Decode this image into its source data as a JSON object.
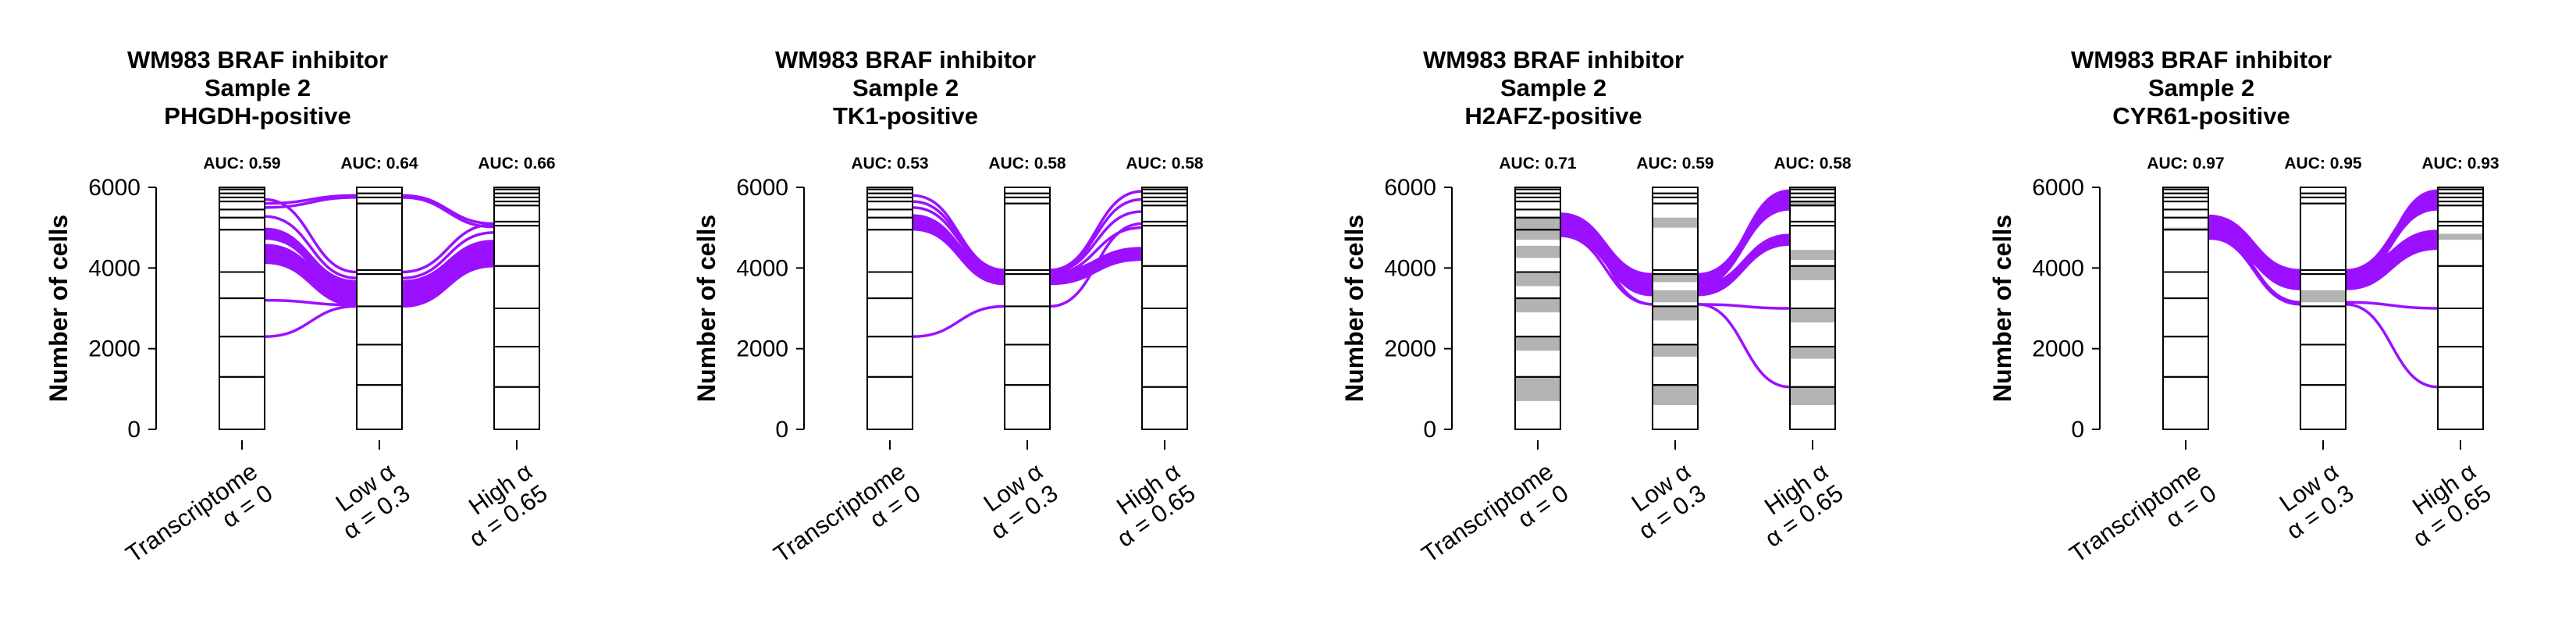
{
  "style": {
    "flow_color": "#9b10ff",
    "highlight_color": "#b3b3b3",
    "axis_color": "#000000"
  },
  "chart_data": [
    {
      "type": "alluvial",
      "title": [
        "WM983 BRAF inhibitor",
        "Sample 2",
        "PHGDH-positive"
      ],
      "ylabel": "Number of cells",
      "ylim": [
        0,
        6000
      ],
      "yticks": [
        0,
        2000,
        4000,
        6000
      ],
      "categories": [
        [
          "Transcriptome",
          "α = 0"
        ],
        [
          "Low α",
          "α = 0.3"
        ],
        [
          "High α",
          "α = 0.65"
        ]
      ],
      "auc": [
        "AUC: 0.59",
        "AUC: 0.64",
        "AUC: 0.66"
      ],
      "axes": [
        {
          "boundaries": [
            0,
            1300,
            2300,
            3250,
            3900,
            4950,
            5250,
            5450,
            5650,
            5750,
            5850,
            5950,
            6000
          ],
          "gray": []
        },
        {
          "boundaries": [
            0,
            1100,
            2100,
            3050,
            3850,
            3950,
            5600,
            5750,
            5850,
            6000
          ],
          "gray": []
        },
        {
          "boundaries": [
            0,
            1050,
            2050,
            3000,
            4050,
            5050,
            5150,
            5550,
            5650,
            5750,
            5850,
            5950,
            6000
          ],
          "gray": []
        }
      ],
      "flows": [
        {
          "y": [
            2300,
            3050,
            4050
          ],
          "band": 0
        },
        {
          "y": [
            3200,
            3080,
            4150
          ],
          "band": 0
        },
        {
          "y": [
            4350,
            3300,
            4300
          ],
          "band": 500
        },
        {
          "y": [
            4850,
            3550,
            4550
          ],
          "band": 300
        },
        {
          "y": [
            5280,
            3750,
            4880
          ],
          "band": 0
        },
        {
          "y": [
            5500,
            5750,
            5020
          ],
          "band": 0
        },
        {
          "y": [
            5600,
            5800,
            5100
          ],
          "band": 0
        },
        {
          "y": [
            5700,
            3900,
            5080
          ],
          "band": 0
        }
      ]
    },
    {
      "type": "alluvial",
      "title": [
        "WM983 BRAF inhibitor",
        "Sample 2",
        "TK1-positive"
      ],
      "ylabel": "Number of cells",
      "ylim": [
        0,
        6000
      ],
      "yticks": [
        0,
        2000,
        4000,
        6000
      ],
      "categories": [
        [
          "Transcriptome",
          "α = 0"
        ],
        [
          "Low α",
          "α = 0.3"
        ],
        [
          "High α",
          "α = 0.65"
        ]
      ],
      "auc": [
        "AUC: 0.53",
        "AUC: 0.58",
        "AUC: 0.58"
      ],
      "axes": [
        {
          "boundaries": [
            0,
            1300,
            2300,
            3250,
            3900,
            4950,
            5250,
            5450,
            5650,
            5750,
            5850,
            5950,
            6000
          ],
          "gray": []
        },
        {
          "boundaries": [
            0,
            1100,
            2100,
            3050,
            3850,
            3950,
            5600,
            5750,
            5850,
            6000
          ],
          "gray": []
        },
        {
          "boundaries": [
            0,
            1050,
            2050,
            3000,
            4050,
            5050,
            5150,
            5550,
            5650,
            5750,
            5850,
            5950,
            6000
          ],
          "gray": []
        }
      ],
      "flows": [
        {
          "y": [
            2300,
            3050,
            5100
          ],
          "band": 0
        },
        {
          "y": [
            5100,
            3750,
            4350
          ],
          "band": 350
        },
        {
          "y": [
            5300,
            3850,
            5000
          ],
          "band": 0
        },
        {
          "y": [
            5500,
            3900,
            5400
          ],
          "band": 0
        },
        {
          "y": [
            5650,
            3920,
            5700
          ],
          "band": 0
        },
        {
          "y": [
            5800,
            3950,
            5900
          ],
          "band": 0
        }
      ]
    },
    {
      "type": "alluvial",
      "title": [
        "WM983 BRAF inhibitor",
        "Sample 2",
        "H2AFZ-positive"
      ],
      "ylabel": "Number of cells",
      "ylim": [
        0,
        6000
      ],
      "yticks": [
        0,
        2000,
        4000,
        6000
      ],
      "categories": [
        [
          "Transcriptome",
          "α = 0"
        ],
        [
          "Low α",
          "α = 0.3"
        ],
        [
          "High α",
          "α = 0.65"
        ]
      ],
      "auc": [
        "AUC: 0.71",
        "AUC: 0.59",
        "AUC: 0.58"
      ],
      "axes": [
        {
          "boundaries": [
            0,
            1300,
            2300,
            3250,
            3900,
            4950,
            5250,
            5450,
            5650,
            5750,
            5850,
            5950,
            6000
          ],
          "gray": [
            [
              700,
              1300
            ],
            [
              1950,
              2300
            ],
            [
              2900,
              3250
            ],
            [
              3550,
              3900
            ],
            [
              4250,
              4550
            ],
            [
              4700,
              5250
            ]
          ]
        },
        {
          "boundaries": [
            0,
            1100,
            2100,
            3050,
            3850,
            3950,
            5600,
            5750,
            5850,
            6000
          ],
          "gray": [
            [
              600,
              1100
            ],
            [
              1800,
              2100
            ],
            [
              2700,
              3050
            ],
            [
              3150,
              3450
            ],
            [
              3650,
              3850
            ],
            [
              5000,
              5250
            ]
          ]
        },
        {
          "boundaries": [
            0,
            1050,
            2050,
            3000,
            4050,
            5050,
            5150,
            5550,
            5650,
            5750,
            5850,
            5950,
            6000
          ],
          "gray": [
            [
              600,
              1050
            ],
            [
              1750,
              2050
            ],
            [
              2650,
              3000
            ],
            [
              3700,
              4050
            ],
            [
              4200,
              4450
            ],
            [
              5550,
              5650
            ]
          ]
        }
      ],
      "flows": [
        {
          "y": [
            4950,
            3450,
            4700
          ],
          "band": 300
        },
        {
          "y": [
            4800,
            3100,
            1050
          ],
          "band": 0
        },
        {
          "y": [
            5150,
            3100,
            3000
          ],
          "band": 0
        },
        {
          "y": [
            5200,
            3700,
            5600
          ],
          "band": 350
        },
        {
          "y": [
            4900,
            3650,
            5850
          ],
          "band": 200
        }
      ]
    },
    {
      "type": "alluvial",
      "title": [
        "WM983 BRAF inhibitor",
        "Sample 2",
        "CYR61-positive"
      ],
      "ylabel": "Number of cells",
      "ylim": [
        0,
        6000
      ],
      "yticks": [
        0,
        2000,
        4000,
        6000
      ],
      "categories": [
        [
          "Transcriptome",
          "α = 0"
        ],
        [
          "Low α",
          "α = 0.3"
        ],
        [
          "High α",
          "α = 0.65"
        ]
      ],
      "auc": [
        "AUC: 0.97",
        "AUC: 0.95",
        "AUC: 0.93"
      ],
      "axes": [
        {
          "boundaries": [
            0,
            1300,
            2300,
            3250,
            3900,
            4950,
            5250,
            5450,
            5650,
            5750,
            5850,
            5950,
            6000
          ],
          "gray": [
            [
              4950,
              5000
            ]
          ]
        },
        {
          "boundaries": [
            0,
            1100,
            2100,
            3050,
            3850,
            3950,
            5600,
            5750,
            5850,
            6000
          ],
          "gray": [
            [
              3150,
              3450
            ]
          ]
        },
        {
          "boundaries": [
            0,
            1050,
            2050,
            3000,
            4050,
            5050,
            5150,
            5550,
            5650,
            5750,
            5850,
            5950,
            6000
          ],
          "gray": [
            [
              4700,
              4850
            ]
          ]
        }
      ],
      "flows": [
        {
          "y": [
            4950,
            3700,
            4700
          ],
          "band": 500
        },
        {
          "y": [
            4750,
            3100,
            1050
          ],
          "band": 0
        },
        {
          "y": [
            4850,
            3150,
            3000
          ],
          "band": 0
        },
        {
          "y": [
            5150,
            3800,
            5600
          ],
          "band": 350
        },
        {
          "y": [
            5000,
            3600,
            5850
          ],
          "band": 200
        }
      ]
    }
  ]
}
